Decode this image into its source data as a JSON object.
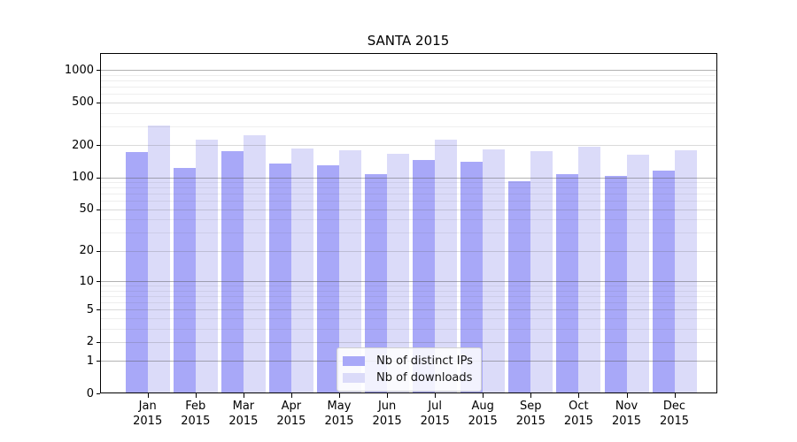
{
  "chart_data": {
    "type": "bar",
    "title": "SANTA 2015",
    "categories": [
      "Jan",
      "Feb",
      "Mar",
      "Apr",
      "May",
      "Jun",
      "Jul",
      "Aug",
      "Sep",
      "Oct",
      "Nov",
      "Dec"
    ],
    "year_label": "2015",
    "series": [
      {
        "name": "Nb of distinct IPs",
        "color": "#a8a8f8",
        "values": [
          172,
          122,
          176,
          134,
          129,
          107,
          145,
          141,
          92,
          108,
          104,
          116
        ]
      },
      {
        "name": "Nb of downloads",
        "color": "#dbdbf9",
        "values": [
          302,
          223,
          245,
          186,
          179,
          165,
          226,
          182,
          175,
          193,
          162,
          178
        ]
      }
    ],
    "xlabel": "",
    "ylabel": "",
    "yscale": "log1p",
    "yticks": [
      0,
      1,
      2,
      5,
      10,
      20,
      50,
      100,
      200,
      500,
      1000
    ],
    "ylim": [
      0,
      1430
    ],
    "grid": true,
    "legend_position": "lower center"
  }
}
